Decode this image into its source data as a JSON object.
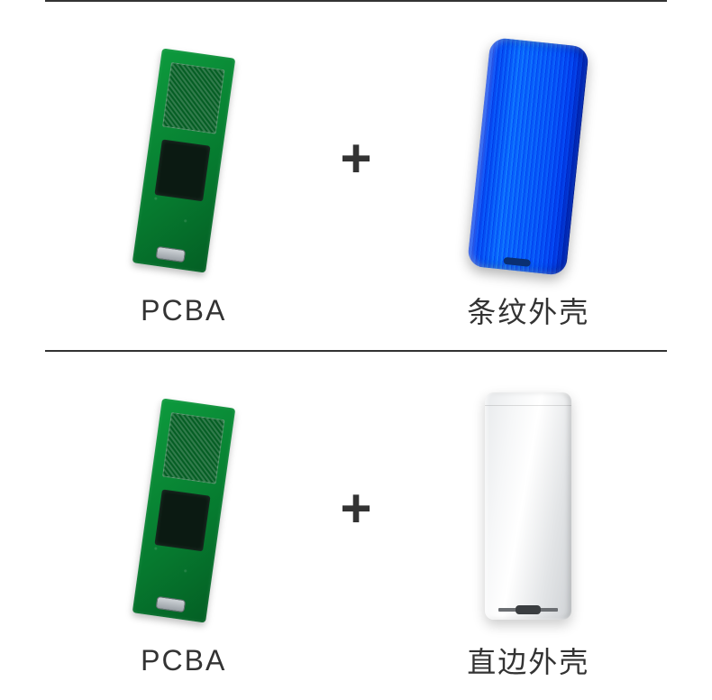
{
  "plus_symbol": "+",
  "rows": [
    {
      "left_label": "PCBA",
      "right_label": "条纹外壳",
      "case_type": "ribbed",
      "case_color": "#1966e0",
      "pcba_color": "#0d9a3d"
    },
    {
      "left_label": "PCBA",
      "right_label": "直边外壳",
      "case_type": "straight",
      "case_color": "#e8eaec",
      "pcba_color": "#0d9a3d"
    }
  ],
  "styling": {
    "background_color": "#ffffff",
    "text_color": "#333333",
    "label_fontsize": 32,
    "plus_fontsize": 60,
    "divider_color": "#333333",
    "divider_thickness": 2,
    "font_family": "Arial, Microsoft YaHei, sans-serif"
  }
}
